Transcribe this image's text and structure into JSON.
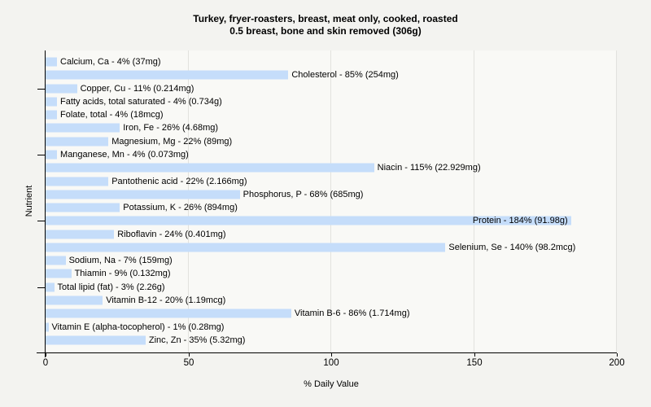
{
  "title": {
    "line1": "Turkey, fryer-roasters, breast, meat only, cooked, roasted",
    "line2": "0.5 breast, bone and skin removed (306g)"
  },
  "chart_data": {
    "type": "bar",
    "orientation": "horizontal",
    "title": "Turkey, fryer-roasters, breast, meat only, cooked, roasted 0.5 breast, bone and skin removed (306g)",
    "xlabel": "% Daily Value",
    "ylabel": "Nutrient",
    "xlim": [
      0,
      200
    ],
    "xticks": [
      0,
      50,
      100,
      150,
      200
    ],
    "grid": "vertical",
    "legend": "none",
    "bar_color": "#c5ddfa",
    "items": [
      {
        "name": "Calcium, Ca",
        "percent": 4,
        "amount": "37mg",
        "label": "Calcium, Ca - 4% (37mg)"
      },
      {
        "name": "Cholesterol",
        "percent": 85,
        "amount": "254mg",
        "label": "Cholesterol - 85% (254mg)"
      },
      {
        "name": "Copper, Cu",
        "percent": 11,
        "amount": "0.214mg",
        "label": "Copper, Cu - 11% (0.214mg)"
      },
      {
        "name": "Fatty acids, total saturated",
        "percent": 4,
        "amount": "0.734g",
        "label": "Fatty acids, total saturated - 4% (0.734g)"
      },
      {
        "name": "Folate, total",
        "percent": 4,
        "amount": "18mcg",
        "label": "Folate, total - 4% (18mcg)"
      },
      {
        "name": "Iron, Fe",
        "percent": 26,
        "amount": "4.68mg",
        "label": "Iron, Fe - 26% (4.68mg)"
      },
      {
        "name": "Magnesium, Mg",
        "percent": 22,
        "amount": "89mg",
        "label": "Magnesium, Mg - 22% (89mg)"
      },
      {
        "name": "Manganese, Mn",
        "percent": 4,
        "amount": "0.073mg",
        "label": "Manganese, Mn - 4% (0.073mg)"
      },
      {
        "name": "Niacin",
        "percent": 115,
        "amount": "22.929mg",
        "label": "Niacin - 115% (22.929mg)"
      },
      {
        "name": "Pantothenic acid",
        "percent": 22,
        "amount": "2.166mg",
        "label": "Pantothenic acid - 22% (2.166mg)"
      },
      {
        "name": "Phosphorus, P",
        "percent": 68,
        "amount": "685mg",
        "label": "Phosphorus, P - 68% (685mg)"
      },
      {
        "name": "Potassium, K",
        "percent": 26,
        "amount": "894mg",
        "label": "Potassium, K - 26% (894mg)"
      },
      {
        "name": "Protein",
        "percent": 184,
        "amount": "91.98g",
        "label": "Protein - 184% (91.98g)"
      },
      {
        "name": "Riboflavin",
        "percent": 24,
        "amount": "0.401mg",
        "label": "Riboflavin - 24% (0.401mg)"
      },
      {
        "name": "Selenium, Se",
        "percent": 140,
        "amount": "98.2mcg",
        "label": "Selenium, Se - 140% (98.2mcg)"
      },
      {
        "name": "Sodium, Na",
        "percent": 7,
        "amount": "159mg",
        "label": "Sodium, Na - 7% (159mg)"
      },
      {
        "name": "Thiamin",
        "percent": 9,
        "amount": "0.132mg",
        "label": "Thiamin - 9% (0.132mg)"
      },
      {
        "name": "Total lipid (fat)",
        "percent": 3,
        "amount": "2.26g",
        "label": "Total lipid (fat) - 3% (2.26g)"
      },
      {
        "name": "Vitamin B-12",
        "percent": 20,
        "amount": "1.19mcg",
        "label": "Vitamin B-12 - 20% (1.19mcg)"
      },
      {
        "name": "Vitamin B-6",
        "percent": 86,
        "amount": "1.714mg",
        "label": "Vitamin B-6 - 86% (1.714mg)"
      },
      {
        "name": "Vitamin E (alpha-tocopherol)",
        "percent": 1,
        "amount": "0.28mg",
        "label": "Vitamin E (alpha-tocopherol) - 1% (0.28mg)"
      },
      {
        "name": "Zinc, Zn",
        "percent": 35,
        "amount": "5.32mg",
        "label": "Zinc, Zn - 35% (5.32mg)"
      }
    ]
  }
}
